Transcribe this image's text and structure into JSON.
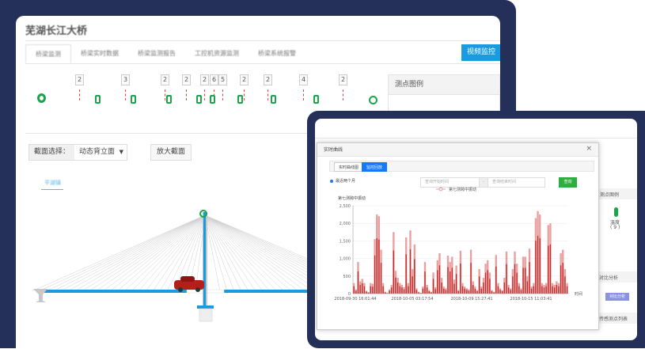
{
  "back_app": {
    "title": "芜湖长江大桥",
    "tabs": [
      "桥梁监测",
      "桥梁实时数据",
      "桥梁监测报告",
      "工控机资源监测",
      "桥梁系统报警"
    ],
    "video_button": "视频监控",
    "sensor_counts": [
      "2",
      "3",
      "2",
      "2",
      "2",
      "6",
      "5",
      "2",
      "2",
      "4",
      "2"
    ],
    "legend_title": "测点图例",
    "section_label": "截面选择：",
    "section_value": "动态背立面",
    "zoom_button": "放大截面",
    "direction_label": "平湖镇"
  },
  "front_app": {
    "legend_header": "测点图例",
    "sensor_label": "温度",
    "sensor_count": "( 9 )",
    "compare_header": "对比分析",
    "compare_button": "对比分析",
    "list_header": "传感测点列表"
  },
  "modal": {
    "title": "实时曲线",
    "close": "×",
    "tabs": [
      "实时曲线图",
      "监控回放"
    ],
    "active_tab": 1,
    "radio_label": "最近两个月",
    "start_placeholder": "查询开始时间",
    "separator": "-",
    "end_placeholder": "查询结束时间",
    "query_button": "查询"
  },
  "chart_data": {
    "type": "bar",
    "ylabel": "第七测跨中振动",
    "xlabel": "时间",
    "ylim": [
      0,
      2500
    ],
    "yticks": [
      "0",
      "500",
      "1,000",
      "1,500",
      "2,000",
      "2,500"
    ],
    "xticks": [
      "2018-09-30 16:01:44",
      "2018-10-05 03:17:54",
      "2018-10-09 15:27:41",
      "2018-10-15 11:03:41"
    ],
    "grid": true,
    "series": [
      {
        "name": "第七测跨中振动",
        "color": "#c62828",
        "values": [
          300,
          120,
          900,
          350,
          420,
          300,
          80,
          40,
          300,
          280,
          1550,
          2250,
          2200,
          1250,
          300,
          50,
          20,
          120,
          250,
          1750,
          650,
          450,
          300,
          250,
          180,
          1600,
          300,
          1800,
          700,
          1400,
          150,
          50,
          20,
          200,
          900,
          250,
          100,
          50,
          600,
          180,
          950,
          1150,
          450,
          200,
          150,
          1080,
          900,
          1050,
          400,
          800,
          100,
          1220,
          300,
          200,
          150,
          120,
          1250,
          350,
          200,
          100,
          700,
          200,
          450,
          850,
          950,
          600,
          100,
          50,
          1100,
          300,
          150,
          100,
          450,
          1200,
          250,
          150,
          700,
          1200,
          850,
          300,
          150,
          1050,
          1050,
          500,
          1280,
          200,
          300,
          2150,
          2350,
          2250,
          300,
          250,
          300,
          1950,
          2000,
          300,
          250,
          350,
          300,
          1150,
          1250,
          700,
          300
        ]
      }
    ]
  }
}
